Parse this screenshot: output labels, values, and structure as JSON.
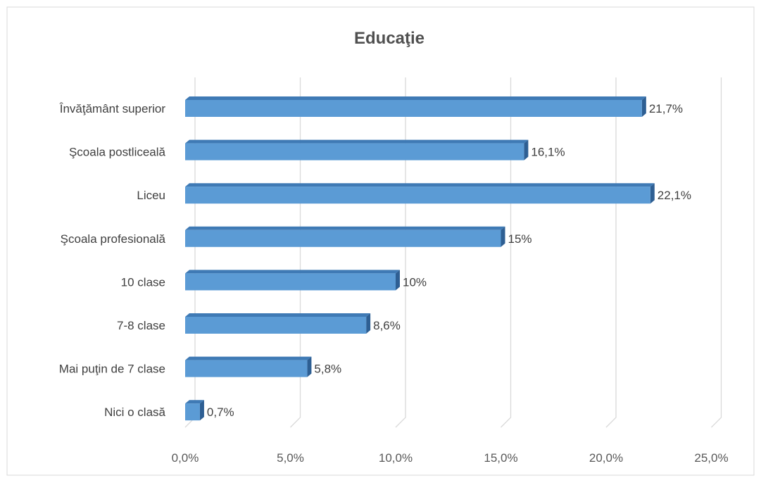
{
  "chart_data": {
    "type": "bar",
    "orientation": "horizontal",
    "title": "Educaţie",
    "xlabel": "",
    "ylabel": "",
    "categories": [
      "Învăţământ superior",
      "Şcoala postliceală",
      "Liceu",
      "Şcoala profesională",
      "10 clase",
      "7-8 clase",
      "Mai puţin de 7 clase",
      "Nici o clasă"
    ],
    "values": [
      21.7,
      16.1,
      22.1,
      15,
      10,
      8.6,
      5.8,
      0.7
    ],
    "data_labels": [
      "21,7%",
      "16,1%",
      "22,1%",
      "15%",
      "10%",
      "8,6%",
      "5,8%",
      "0,7%"
    ],
    "xlim": [
      0,
      25
    ],
    "ticks": [
      0,
      5,
      10,
      15,
      20,
      25
    ],
    "tick_labels": [
      "0,0%",
      "5,0%",
      "10,0%",
      "15,0%",
      "20,0%",
      "25,0%"
    ],
    "grid": true,
    "legend": "none",
    "style": "3d-bar",
    "colors": {
      "bar_front": "#5b9bd5",
      "bar_top": "#3f7ab5",
      "bar_side": "#2e5f93",
      "grid": "#d9d9d9",
      "frame": "#d9d9d9"
    }
  }
}
